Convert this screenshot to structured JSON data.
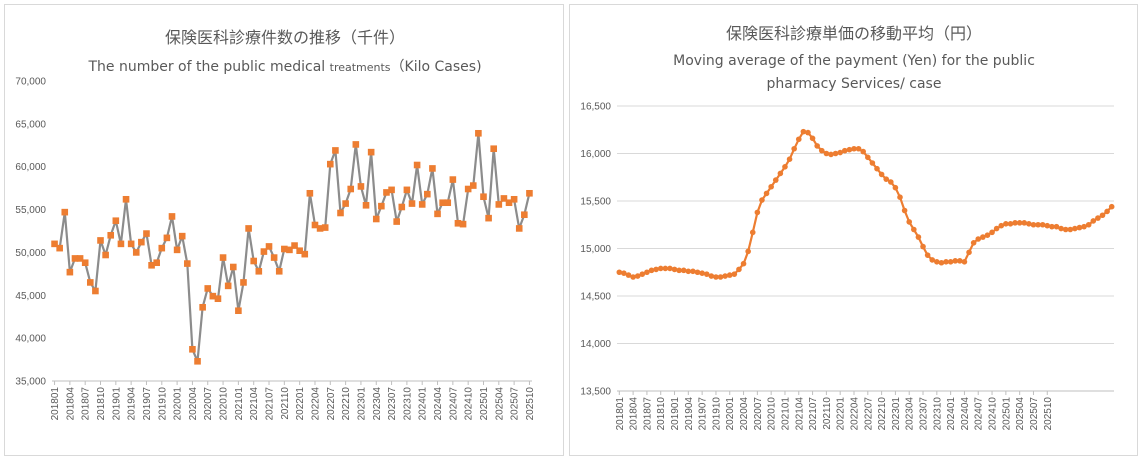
{
  "chart_data": [
    {
      "type": "line",
      "title": "保険医科診療件数の推移（千件）",
      "subtitle": "The number of the public medical treatments（Kilo Cases)",
      "subtitle_main": "The number of the public medical",
      "subtitle_small": "treatments",
      "subtitle_tail": "（Kilo Cases)",
      "ylim": [
        35000,
        70000
      ],
      "yticks": [
        "35,000",
        "40,000",
        "45,000",
        "50,000",
        "55,000",
        "60,000",
        "65,000",
        "70,000"
      ],
      "xtick_labels": [
        "201801",
        "201804",
        "201807",
        "201810",
        "201901",
        "201904",
        "201907",
        "201910",
        "202001",
        "202004",
        "202007",
        "202010",
        "202101",
        "202104",
        "202107",
        "202110",
        "202201",
        "202204",
        "202207",
        "202210",
        "202301",
        "202304",
        "202307",
        "202310",
        "202401",
        "202404",
        "202407",
        "202410",
        "202501",
        "202504",
        "202507",
        "202510"
      ],
      "markers": true,
      "grid": false,
      "line_color": "#8c8c8c",
      "marker_color": "#ed7d31",
      "series": [
        {
          "values": [
            51000,
            50500,
            54700,
            47700,
            49300,
            49300,
            48800,
            46500,
            45500,
            51400,
            49700,
            52000,
            53700,
            51000,
            56200,
            51000,
            50000,
            51200,
            52200,
            48500,
            48800,
            50500,
            51700,
            54200,
            50300,
            51900,
            48700,
            38700,
            37300,
            43600,
            45800,
            44900,
            44600,
            49400,
            46100,
            48300,
            43200,
            46500,
            52800,
            49000,
            47800,
            50100,
            50700,
            49400,
            47800,
            50400,
            50300,
            50800,
            50200,
            49800,
            56900,
            53200,
            52800,
            52900,
            60300,
            61900,
            54600,
            55700,
            57400,
            62600,
            57700,
            55500,
            61700,
            53900,
            55400,
            57000,
            57300,
            53600,
            55300,
            57300,
            55700,
            60200,
            55600,
            56800,
            59800,
            54500,
            55800,
            55800,
            58500,
            53400,
            53300,
            57400,
            57800,
            63900,
            56500,
            54000,
            62100,
            55600,
            56300,
            55800,
            56200,
            52800,
            54400,
            56900
          ]
        }
      ]
    },
    {
      "type": "line",
      "title": "保険医科診療単価の移動平均（円）",
      "subtitle_line1": "Moving average of the payment (Yen) for the public",
      "subtitle_line2": "pharmacy Services/ case",
      "ylim": [
        13500,
        16500
      ],
      "yticks": [
        "13,500",
        "14,000",
        "14,500",
        "15,000",
        "15,500",
        "16,000",
        "16,500"
      ],
      "xtick_labels": [
        "201801",
        "201804",
        "201807",
        "201810",
        "201901",
        "201904",
        "201907",
        "201910",
        "202001",
        "202004",
        "202007",
        "202010",
        "202101",
        "202104",
        "202107",
        "202110",
        "202201",
        "202204",
        "202207",
        "202210",
        "202301",
        "202304",
        "202307",
        "202310",
        "202401",
        "202404",
        "202407",
        "202410",
        "202501",
        "202504",
        "202507",
        "202510"
      ],
      "markers": true,
      "grid": true,
      "line_color": "#ed7d31",
      "marker_color": "#ed7d31",
      "series": [
        {
          "values": [
            14750,
            14740,
            14720,
            14700,
            14710,
            14730,
            14750,
            14770,
            14780,
            14790,
            14790,
            14790,
            14780,
            14770,
            14770,
            14760,
            14760,
            14750,
            14740,
            14730,
            14710,
            14700,
            14700,
            14710,
            14720,
            14730,
            14780,
            14840,
            14970,
            15170,
            15380,
            15510,
            15580,
            15650,
            15720,
            15790,
            15860,
            15940,
            16050,
            16150,
            16230,
            16220,
            16160,
            16080,
            16030,
            16000,
            15990,
            16000,
            16010,
            16030,
            16040,
            16050,
            16050,
            16020,
            15960,
            15900,
            15840,
            15780,
            15730,
            15700,
            15640,
            15540,
            15400,
            15280,
            15200,
            15120,
            15020,
            14930,
            14880,
            14860,
            14850,
            14860,
            14860,
            14870,
            14870,
            14860,
            14960,
            15060,
            15100,
            15120,
            15140,
            15170,
            15210,
            15240,
            15260,
            15260,
            15270,
            15270,
            15270,
            15260,
            15250,
            15250,
            15250,
            15240,
            15230,
            15230,
            15210,
            15200,
            15200,
            15210,
            15220,
            15230,
            15250,
            15290,
            15320,
            15350,
            15390,
            15440
          ]
        }
      ]
    }
  ]
}
